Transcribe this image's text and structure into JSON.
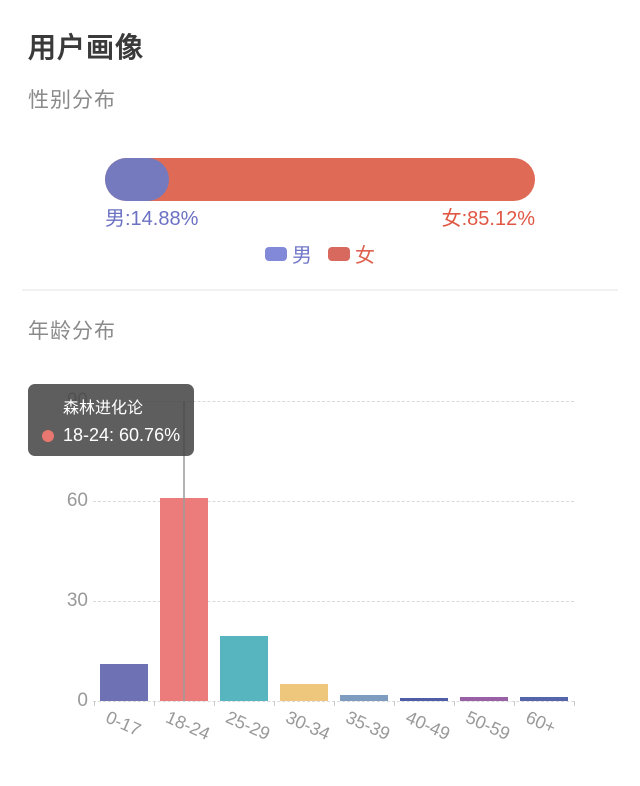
{
  "page": {
    "title": "用户画像"
  },
  "gender": {
    "heading": "性别分布",
    "male_label": "男:14.88%",
    "female_label": "女:85.12%",
    "male_pct": 14.88,
    "female_pct": 85.12,
    "male_color": "#757abe",
    "female_color": "#df6a55",
    "male_text_color": "#6b71c3",
    "female_text_color": "#e05744",
    "legend": [
      {
        "label": "男",
        "swatch_color": "#8289d8",
        "text_color": "#7177c8"
      },
      {
        "label": "女",
        "swatch_color": "#d8695f",
        "text_color": "#df6150"
      }
    ]
  },
  "age": {
    "heading": "年龄分布",
    "tooltip": {
      "title": "森林进化论",
      "value_text": "18-24: 60.76%",
      "marker_color": "#e8776f"
    }
  },
  "chart_data": [
    {
      "type": "bar",
      "variant": "horizontal-stacked-pill",
      "title": "性别分布",
      "categories": [
        "男",
        "女"
      ],
      "values": [
        14.88,
        85.12
      ],
      "value_labels": [
        "男:14.88%",
        "女:85.12%"
      ],
      "colors": [
        "#757abe",
        "#df6a55"
      ],
      "legend_position": "bottom",
      "xlim": [
        0,
        100
      ]
    },
    {
      "type": "bar",
      "title": "年龄分布",
      "categories": [
        "0-17",
        "18-24",
        "25-29",
        "30-34",
        "35-39",
        "40-49",
        "50-59",
        "60+"
      ],
      "values": [
        11,
        60.76,
        19.6,
        5,
        1.8,
        0.9,
        1.3,
        1.3
      ],
      "colors": [
        "#6e72b4",
        "#ec7b7b",
        "#57b5bf",
        "#eec77d",
        "#7d9cc0",
        "#4f5ca6",
        "#9a60a6",
        "#5565aa"
      ],
      "ylim": [
        0,
        90
      ],
      "yticks": [
        0,
        30,
        60,
        90
      ],
      "grid": "dashed-horizontal",
      "x_label_rotation_deg": 24,
      "highlighted_category": "18-24",
      "tooltip": {
        "series": "森林进化论",
        "text": "18-24: 60.76%"
      },
      "xlabel": "",
      "ylabel": ""
    }
  ]
}
